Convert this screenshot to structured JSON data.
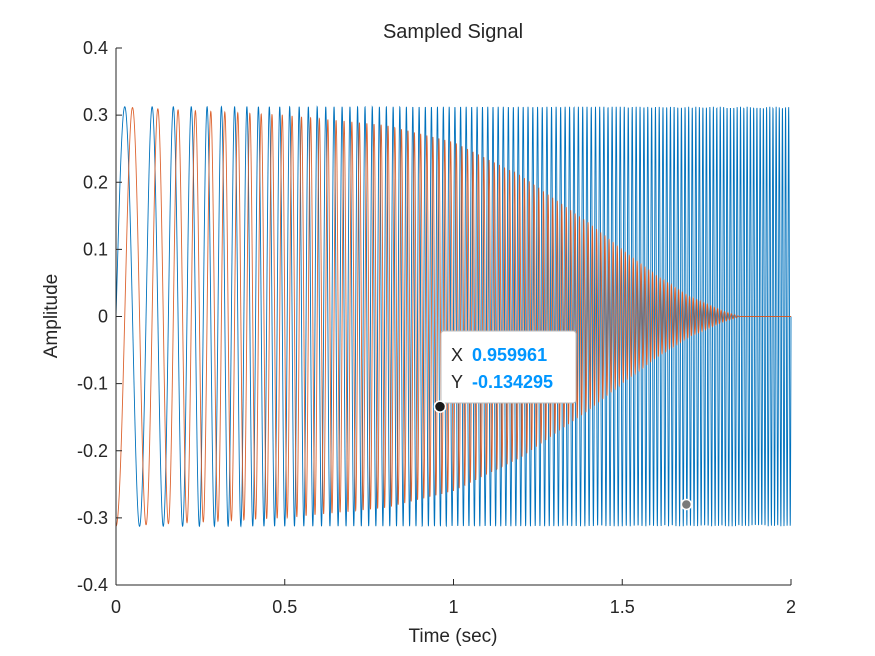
{
  "chart_data": {
    "type": "line",
    "title": "Sampled Signal",
    "xlabel": "Time (sec)",
    "ylabel": "Amplitude",
    "xlim": [
      0,
      2
    ],
    "ylim": [
      -0.4,
      0.4
    ],
    "xticks": [
      0,
      0.5,
      1,
      1.5,
      2
    ],
    "xtick_labels": [
      "0",
      "0.5",
      "1",
      "1.5",
      "2"
    ],
    "yticks": [
      0.4,
      0.3,
      0.2,
      0.1,
      0,
      -0.1,
      -0.2,
      -0.3,
      -0.4
    ],
    "ytick_labels": [
      "0.4",
      "0.3",
      "0.2",
      "0.1",
      "0",
      "-0.1",
      "-0.2",
      "-0.3",
      "-0.4"
    ],
    "grid": false,
    "series": [
      {
        "color": "#0072BD",
        "description": "chirp, constant amplitude 0.3125, frequency rising ~9 Hz to ~109 Hz",
        "amplitude": 0.3125,
        "phase": "sine",
        "f0": 9,
        "f1": 109
      },
      {
        "color": "#D95319",
        "description": "chirp, amplitude tapering from 0.3125 to 0 near t = 1.85",
        "amplitude": 0.3125,
        "phase": "negative-cosine",
        "f0": 9,
        "f1": 109,
        "envelope_t": [
          0,
          0.5,
          0.8,
          1.0,
          1.2,
          1.4,
          1.5,
          1.6,
          1.7,
          1.8,
          1.85,
          2.0
        ],
        "envelope_a": [
          0.3125,
          0.3,
          0.285,
          0.26,
          0.21,
          0.14,
          0.1,
          0.062,
          0.03,
          0.008,
          0.0,
          0.0
        ]
      }
    ],
    "datatip": {
      "x_key": "X",
      "y_key": "Y",
      "x_value": "0.959961",
      "y_value": "-0.134295",
      "point": [
        0.959961,
        -0.134295
      ],
      "value_color": "#0096FF"
    },
    "markers": [
      {
        "point": [
          1.69,
          -0.28
        ]
      }
    ]
  }
}
